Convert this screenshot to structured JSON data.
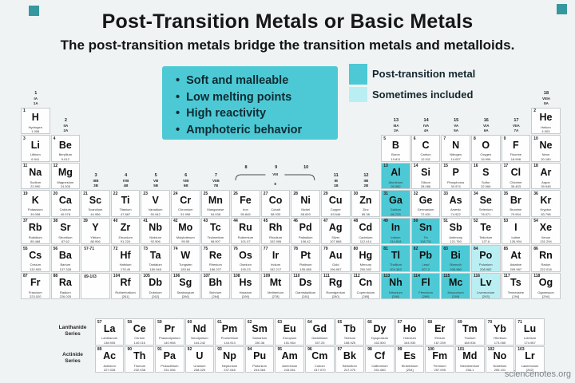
{
  "page": {
    "background": "#eff3f4",
    "watermark": "sciencenotes.org"
  },
  "header": {
    "title": "Post-Transition Metals or Basic Metals",
    "subtitle": "The post-transition metals bridge the transition metals and metalloids."
  },
  "info_box": {
    "background": "#4cc9d4",
    "bullets": [
      "Soft and malleable",
      "Low melting points",
      "High reactivity",
      "Amphoteric behavior"
    ]
  },
  "legend": {
    "items": [
      {
        "label": "Post-transition metal",
        "color": "#4cc9d4"
      },
      {
        "label": "Sometimes included",
        "color": "#b9eef3"
      }
    ]
  },
  "colors": {
    "highlight_main": "#4cc9d4",
    "highlight_some": "#b9eef3",
    "cell_bg": "#fefefe",
    "cell_border": "#c6cbce",
    "decor_square": "#35989e"
  },
  "table": {
    "group_headers": [
      {
        "col": 0,
        "band": "row1",
        "lines": [
          "1",
          "IA",
          "1A"
        ]
      },
      {
        "col": 1,
        "band": "row2",
        "lines": [
          "2",
          "IIA",
          "2A"
        ]
      },
      {
        "col": 2,
        "band": "row4",
        "lines": [
          "3",
          "IIIB",
          "3B"
        ]
      },
      {
        "col": 3,
        "band": "row4",
        "lines": [
          "4",
          "IVB",
          "4B"
        ]
      },
      {
        "col": 4,
        "band": "row4",
        "lines": [
          "5",
          "VB",
          "5B"
        ]
      },
      {
        "col": 5,
        "band": "row4",
        "lines": [
          "6",
          "VIB",
          "6B"
        ]
      },
      {
        "col": 6,
        "band": "row4",
        "lines": [
          "7",
          "VIIB",
          "7B"
        ]
      },
      {
        "col": 10,
        "band": "row4",
        "lines": [
          "11",
          "IB",
          "1B"
        ]
      },
      {
        "col": 11,
        "band": "row4",
        "lines": [
          "12",
          "IIB",
          "2B"
        ]
      },
      {
        "col": 12,
        "band": "row2",
        "lines": [
          "13",
          "IIIA",
          "3A"
        ]
      },
      {
        "col": 13,
        "band": "row2",
        "lines": [
          "14",
          "IVA",
          "4A"
        ]
      },
      {
        "col": 14,
        "band": "row2",
        "lines": [
          "15",
          "VA",
          "5A"
        ]
      },
      {
        "col": 15,
        "band": "row2",
        "lines": [
          "16",
          "VIA",
          "6A"
        ]
      },
      {
        "col": 16,
        "band": "row2",
        "lines": [
          "17",
          "VIIA",
          "7A"
        ]
      },
      {
        "col": 17,
        "band": "row1",
        "lines": [
          "18",
          "VIIIA",
          "8A"
        ]
      }
    ],
    "viii_group": {
      "cols": [
        7,
        8,
        9
      ],
      "numbers": [
        "8",
        "9",
        "10"
      ],
      "label": "VIII",
      "sub": "8"
    },
    "placeholders": [
      {
        "label": "57-71",
        "row": 5,
        "col": 2
      },
      {
        "label": "89-103",
        "row": 6,
        "col": 2
      }
    ],
    "series_labels": [
      {
        "label": "Lanthanide Series"
      },
      {
        "label": "Actinide Series"
      }
    ],
    "elements_schema": [
      "atomic_number",
      "symbol",
      "name",
      "mass",
      "row",
      "col",
      "highlight(0=none,1=post-transition,2=sometimes)"
    ],
    "elements": [
      [
        1,
        "H",
        "Hydrogen",
        "1.008",
        0,
        0,
        0
      ],
      [
        2,
        "He",
        "Helium",
        "4.003",
        0,
        17,
        0
      ],
      [
        3,
        "Li",
        "Lithium",
        "6.941",
        1,
        0,
        0
      ],
      [
        4,
        "Be",
        "Beryllium",
        "9.012",
        1,
        1,
        0
      ],
      [
        5,
        "B",
        "Boron",
        "10.811",
        1,
        12,
        0
      ],
      [
        6,
        "C",
        "Carbon",
        "12.011",
        1,
        13,
        0
      ],
      [
        7,
        "N",
        "Nitrogen",
        "14.007",
        1,
        14,
        0
      ],
      [
        8,
        "O",
        "Oxygen",
        "15.999",
        1,
        15,
        0
      ],
      [
        9,
        "F",
        "Fluorine",
        "18.998",
        1,
        16,
        0
      ],
      [
        10,
        "Ne",
        "Neon",
        "20.180",
        1,
        17,
        0
      ],
      [
        11,
        "Na",
        "Sodium",
        "22.990",
        2,
        0,
        0
      ],
      [
        12,
        "Mg",
        "Magnesium",
        "24.305",
        2,
        1,
        0
      ],
      [
        13,
        "Al",
        "Aluminum",
        "26.982",
        2,
        12,
        1
      ],
      [
        14,
        "Si",
        "Silicon",
        "28.086",
        2,
        13,
        0
      ],
      [
        15,
        "P",
        "Phosphorus",
        "30.974",
        2,
        14,
        0
      ],
      [
        16,
        "S",
        "Sulfur",
        "32.066",
        2,
        15,
        0
      ],
      [
        17,
        "Cl",
        "Chlorine",
        "35.453",
        2,
        16,
        0
      ],
      [
        18,
        "Ar",
        "Argon",
        "39.948",
        2,
        17,
        0
      ],
      [
        19,
        "K",
        "Potassium",
        "39.098",
        3,
        0,
        0
      ],
      [
        20,
        "Ca",
        "Calcium",
        "40.078",
        3,
        1,
        0
      ],
      [
        21,
        "Sc",
        "Scandium",
        "44.956",
        3,
        2,
        0
      ],
      [
        22,
        "Ti",
        "Titanium",
        "47.867",
        3,
        3,
        0
      ],
      [
        23,
        "V",
        "Vanadium",
        "50.942",
        3,
        4,
        0
      ],
      [
        24,
        "Cr",
        "Chromium",
        "51.996",
        3,
        5,
        0
      ],
      [
        25,
        "Mn",
        "Manganese",
        "54.938",
        3,
        6,
        0
      ],
      [
        26,
        "Fe",
        "Iron",
        "55.845",
        3,
        7,
        0
      ],
      [
        27,
        "Co",
        "Cobalt",
        "58.933",
        3,
        8,
        0
      ],
      [
        28,
        "Ni",
        "Nickel",
        "58.693",
        3,
        9,
        0
      ],
      [
        29,
        "Cu",
        "Copper",
        "63.546",
        3,
        10,
        0
      ],
      [
        30,
        "Zn",
        "Zinc",
        "65.38",
        3,
        11,
        0
      ],
      [
        31,
        "Ga",
        "Gallium",
        "69.723",
        3,
        12,
        1
      ],
      [
        32,
        "Ge",
        "Germanium",
        "72.631",
        3,
        13,
        0
      ],
      [
        33,
        "As",
        "Arsenic",
        "74.922",
        3,
        14,
        0
      ],
      [
        34,
        "Se",
        "Selenium",
        "78.971",
        3,
        15,
        0
      ],
      [
        35,
        "Br",
        "Bromine",
        "79.904",
        3,
        16,
        0
      ],
      [
        36,
        "Kr",
        "Krypton",
        "83.798",
        3,
        17,
        0
      ],
      [
        37,
        "Rb",
        "Rubidium",
        "85.468",
        4,
        0,
        0
      ],
      [
        38,
        "Sr",
        "Strontium",
        "87.62",
        4,
        1,
        0
      ],
      [
        39,
        "Y",
        "Yttrium",
        "88.906",
        4,
        2,
        0
      ],
      [
        40,
        "Zr",
        "Zirconium",
        "91.224",
        4,
        3,
        0
      ],
      [
        41,
        "Nb",
        "Niobium",
        "92.906",
        4,
        4,
        0
      ],
      [
        42,
        "Mo",
        "Molybdenum",
        "95.95",
        4,
        5,
        0
      ],
      [
        43,
        "Tc",
        "Technetium",
        "98.907",
        4,
        6,
        0
      ],
      [
        44,
        "Ru",
        "Ruthenium",
        "101.07",
        4,
        7,
        0
      ],
      [
        45,
        "Rh",
        "Rhodium",
        "102.906",
        4,
        8,
        0
      ],
      [
        46,
        "Pd",
        "Palladium",
        "106.42",
        4,
        9,
        0
      ],
      [
        47,
        "Ag",
        "Silver",
        "107.868",
        4,
        10,
        0
      ],
      [
        48,
        "Cd",
        "Cadmium",
        "112.414",
        4,
        11,
        0
      ],
      [
        49,
        "In",
        "Indium",
        "114.818",
        4,
        12,
        1
      ],
      [
        50,
        "Sn",
        "Tin",
        "118.711",
        4,
        13,
        1
      ],
      [
        51,
        "Sb",
        "Antimony",
        "121.760",
        4,
        14,
        0
      ],
      [
        52,
        "Te",
        "Tellurium",
        "127.6",
        4,
        15,
        0
      ],
      [
        53,
        "I",
        "Iodine",
        "126.904",
        4,
        16,
        0
      ],
      [
        54,
        "Xe",
        "Xenon",
        "131.294",
        4,
        17,
        0
      ],
      [
        55,
        "Cs",
        "Cesium",
        "132.905",
        5,
        0,
        0
      ],
      [
        56,
        "Ba",
        "Barium",
        "137.328",
        5,
        1,
        0
      ],
      [
        72,
        "Hf",
        "Hafnium",
        "178.49",
        5,
        3,
        0
      ],
      [
        73,
        "Ta",
        "Tantalum",
        "180.948",
        5,
        4,
        0
      ],
      [
        74,
        "W",
        "Tungsten",
        "183.84",
        5,
        5,
        0
      ],
      [
        75,
        "Re",
        "Rhenium",
        "186.207",
        5,
        6,
        0
      ],
      [
        76,
        "Os",
        "Osmium",
        "190.23",
        5,
        7,
        0
      ],
      [
        77,
        "Ir",
        "Iridium",
        "192.217",
        5,
        8,
        0
      ],
      [
        78,
        "Pt",
        "Platinum",
        "195.085",
        5,
        9,
        0
      ],
      [
        79,
        "Au",
        "Gold",
        "196.967",
        5,
        10,
        0
      ],
      [
        80,
        "Hg",
        "Mercury",
        "200.592",
        5,
        11,
        0
      ],
      [
        81,
        "Tl",
        "Thallium",
        "204.383",
        5,
        12,
        1
      ],
      [
        82,
        "Pb",
        "Lead",
        "207.2",
        5,
        13,
        1
      ],
      [
        83,
        "Bi",
        "Bismuth",
        "208.980",
        5,
        14,
        1
      ],
      [
        84,
        "Po",
        "Polonium",
        "208.982",
        5,
        15,
        2
      ],
      [
        85,
        "At",
        "Astatine",
        "209.987",
        5,
        16,
        0
      ],
      [
        86,
        "Rn",
        "Radon",
        "222.018",
        5,
        17,
        0
      ],
      [
        87,
        "Fr",
        "Francium",
        "223.020",
        6,
        0,
        0
      ],
      [
        88,
        "Ra",
        "Radium",
        "226.025",
        6,
        1,
        0
      ],
      [
        104,
        "Rf",
        "Rutherfordium",
        "[261]",
        6,
        3,
        0
      ],
      [
        105,
        "Db",
        "Dubnium",
        "[262]",
        6,
        4,
        0
      ],
      [
        106,
        "Sg",
        "Seaborgium",
        "[266]",
        6,
        5,
        0
      ],
      [
        107,
        "Bh",
        "Bohrium",
        "[264]",
        6,
        6,
        0
      ],
      [
        108,
        "Hs",
        "Hassium",
        "[269]",
        6,
        7,
        0
      ],
      [
        109,
        "Mt",
        "Meitnerium",
        "[278]",
        6,
        8,
        0
      ],
      [
        110,
        "Ds",
        "Darmstadtium",
        "[281]",
        6,
        9,
        0
      ],
      [
        111,
        "Rg",
        "Roentgenium",
        "[280]",
        6,
        10,
        0
      ],
      [
        112,
        "Cn",
        "Copernicium",
        "[285]",
        6,
        11,
        0
      ],
      [
        113,
        "Nh",
        "Nihonium",
        "[286]",
        6,
        12,
        1
      ],
      [
        114,
        "Fl",
        "Flerovium",
        "[289]",
        6,
        13,
        1
      ],
      [
        115,
        "Mc",
        "Moscovium",
        "[289]",
        6,
        14,
        1
      ],
      [
        116,
        "Lv",
        "Livermorium",
        "[293]",
        6,
        15,
        2
      ],
      [
        117,
        "Ts",
        "Tennessine",
        "[294]",
        6,
        16,
        0
      ],
      [
        118,
        "Og",
        "Oganesson",
        "[294]",
        6,
        17,
        0
      ]
    ],
    "lanthanides": [
      [
        57,
        "La",
        "Lanthanum",
        "138.905"
      ],
      [
        58,
        "Ce",
        "Cerium",
        "140.116"
      ],
      [
        59,
        "Pr",
        "Praseodymium",
        "140.908"
      ],
      [
        60,
        "Nd",
        "Neodymium",
        "144.242"
      ],
      [
        61,
        "Pm",
        "Promethium",
        "144.913"
      ],
      [
        62,
        "Sm",
        "Samarium",
        "150.36"
      ],
      [
        63,
        "Eu",
        "Europium",
        "151.964"
      ],
      [
        64,
        "Gd",
        "Gadolinium",
        "157.25"
      ],
      [
        65,
        "Tb",
        "Terbium",
        "158.925"
      ],
      [
        66,
        "Dy",
        "Dysprosium",
        "162.500"
      ],
      [
        67,
        "Ho",
        "Holmium",
        "164.930"
      ],
      [
        68,
        "Er",
        "Erbium",
        "167.259"
      ],
      [
        69,
        "Tm",
        "Thulium",
        "168.934"
      ],
      [
        70,
        "Yb",
        "Ytterbium",
        "173.055"
      ],
      [
        71,
        "Lu",
        "Lutetium",
        "174.967"
      ]
    ],
    "actinides": [
      [
        89,
        "Ac",
        "Actinium",
        "227.028"
      ],
      [
        90,
        "Th",
        "Thorium",
        "232.038"
      ],
      [
        91,
        "Pa",
        "Protactinium",
        "231.036"
      ],
      [
        92,
        "U",
        "Uranium",
        "238.029"
      ],
      [
        93,
        "Np",
        "Neptunium",
        "237.048"
      ],
      [
        94,
        "Pu",
        "Plutonium",
        "244.064"
      ],
      [
        95,
        "Am",
        "Americium",
        "243.061"
      ],
      [
        96,
        "Cm",
        "Curium",
        "247.070"
      ],
      [
        97,
        "Bk",
        "Berkelium",
        "247.070"
      ],
      [
        98,
        "Cf",
        "Californium",
        "251.080"
      ],
      [
        99,
        "Es",
        "Einsteinium",
        "[254]"
      ],
      [
        100,
        "Fm",
        "Fermium",
        "257.095"
      ],
      [
        101,
        "Md",
        "Mendelevium",
        "258.1"
      ],
      [
        102,
        "No",
        "Nobelium",
        "259.101"
      ],
      [
        103,
        "Lr",
        "Lawrencium",
        "[262]"
      ]
    ]
  }
}
